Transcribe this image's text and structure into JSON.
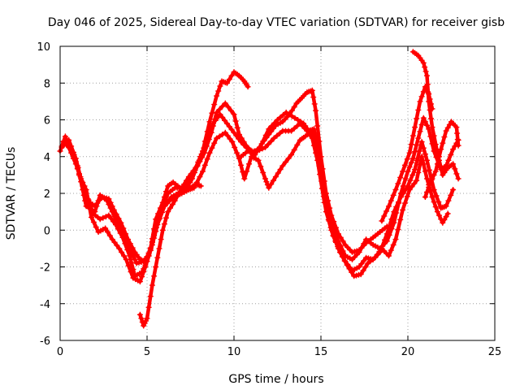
{
  "chart_data": {
    "type": "scatter",
    "title": "Day 046 of 2025, Sidereal Day-to-day VTEC variation (SDTVAR) for receiver gisb",
    "xlabel": "GPS time / hours",
    "ylabel": "SDTVAR / TECUs",
    "xlim": [
      0,
      25
    ],
    "ylim": [
      -6,
      10
    ],
    "xticks": [
      0,
      5,
      10,
      15,
      20,
      25
    ],
    "yticks": [
      -6,
      -4,
      -2,
      0,
      2,
      4,
      6,
      8,
      10
    ],
    "grid": true,
    "marker": "+",
    "color": "#ff0000",
    "series": [
      {
        "name": "satellite track 1",
        "points": [
          [
            0.0,
            4.3
          ],
          [
            0.3,
            5.1
          ],
          [
            0.6,
            4.4
          ],
          [
            1.0,
            3.5
          ],
          [
            1.3,
            2.2
          ],
          [
            1.5,
            1.3
          ],
          [
            2.0,
            1.0
          ],
          [
            2.3,
            1.9
          ],
          [
            2.7,
            1.6
          ],
          [
            3.0,
            1.0
          ],
          [
            3.4,
            0.2
          ],
          [
            3.8,
            -0.6
          ],
          [
            4.1,
            -1.2
          ],
          [
            4.4,
            -1.8
          ],
          [
            4.8,
            -1.7
          ],
          [
            5.1,
            -1.3
          ],
          [
            5.4,
            -0.3
          ],
          [
            5.8,
            1.0
          ],
          [
            6.2,
            2.0
          ],
          [
            6.6,
            2.3
          ],
          [
            7.0,
            2.3
          ],
          [
            7.5,
            2.8
          ],
          [
            7.9,
            3.5
          ],
          [
            8.3,
            4.2
          ],
          [
            8.7,
            5.3
          ],
          [
            9.0,
            6.4
          ],
          [
            9.5,
            6.9
          ],
          [
            10.0,
            6.3
          ],
          [
            10.3,
            5.2
          ],
          [
            10.7,
            4.6
          ],
          [
            11.1,
            4.2
          ],
          [
            11.5,
            4.5
          ],
          [
            12.0,
            5.5
          ],
          [
            12.5,
            6.0
          ],
          [
            13.0,
            6.4
          ],
          [
            13.5,
            6.1
          ],
          [
            14.0,
            5.8
          ],
          [
            14.3,
            5.4
          ],
          [
            14.6,
            5.5
          ],
          [
            14.9,
            4.0
          ],
          [
            15.3,
            1.8
          ],
          [
            15.6,
            0.3
          ],
          [
            16.0,
            -0.6
          ],
          [
            16.4,
            -1.4
          ],
          [
            16.8,
            -1.6
          ],
          [
            17.2,
            -1.2
          ],
          [
            17.6,
            -0.5
          ],
          [
            18.0,
            -0.8
          ],
          [
            18.4,
            -1.0
          ],
          [
            18.8,
            -0.6
          ],
          [
            19.2,
            0.4
          ],
          [
            19.6,
            2.0
          ],
          [
            20.0,
            3.2
          ],
          [
            20.3,
            3.9
          ],
          [
            20.6,
            5.0
          ],
          [
            20.9,
            6.1
          ],
          [
            21.2,
            5.5
          ],
          [
            21.5,
            4.3
          ],
          [
            21.9,
            3.3
          ],
          [
            22.2,
            3.5
          ],
          [
            22.6,
            4.4
          ],
          [
            22.9,
            4.9
          ]
        ]
      },
      {
        "name": "satellite track 2",
        "points": [
          [
            0.1,
            4.5
          ],
          [
            0.4,
            4.8
          ],
          [
            0.8,
            4.1
          ],
          [
            1.1,
            3.0
          ],
          [
            1.5,
            2.0
          ],
          [
            1.9,
            0.9
          ],
          [
            2.3,
            0.6
          ],
          [
            2.8,
            0.8
          ],
          [
            3.2,
            0.3
          ],
          [
            3.6,
            -0.4
          ],
          [
            4.0,
            -1.4
          ],
          [
            4.3,
            -2.5
          ],
          [
            4.7,
            -2.3
          ],
          [
            5.0,
            -1.7
          ],
          [
            5.3,
            -0.8
          ],
          [
            5.6,
            0.3
          ],
          [
            6.0,
            1.3
          ],
          [
            6.4,
            1.8
          ],
          [
            6.8,
            2.0
          ],
          [
            7.2,
            2.2
          ],
          [
            7.6,
            2.8
          ],
          [
            8.0,
            3.8
          ],
          [
            8.4,
            4.8
          ],
          [
            8.8,
            5.8
          ],
          [
            9.2,
            6.3
          ],
          [
            9.6,
            5.8
          ],
          [
            10.0,
            5.3
          ],
          [
            10.4,
            4.8
          ],
          [
            10.9,
            4.3
          ],
          [
            11.3,
            4.3
          ],
          [
            11.8,
            4.5
          ],
          [
            12.3,
            5.0
          ],
          [
            12.8,
            5.4
          ],
          [
            13.3,
            5.4
          ],
          [
            13.8,
            5.8
          ],
          [
            14.2,
            5.4
          ],
          [
            14.5,
            5.0
          ],
          [
            14.8,
            3.8
          ],
          [
            15.2,
            1.5
          ],
          [
            15.6,
            0.0
          ],
          [
            16.0,
            -1.0
          ],
          [
            16.4,
            -1.7
          ],
          [
            16.8,
            -2.2
          ],
          [
            17.2,
            -2.0
          ],
          [
            17.6,
            -1.5
          ],
          [
            18.0,
            -1.6
          ],
          [
            18.4,
            -1.2
          ],
          [
            18.8,
            -0.2
          ],
          [
            19.2,
            1.0
          ],
          [
            19.6,
            1.8
          ],
          [
            20.0,
            2.4
          ],
          [
            20.4,
            3.3
          ],
          [
            20.8,
            4.8
          ],
          [
            21.1,
            3.8
          ],
          [
            21.5,
            2.2
          ],
          [
            21.9,
            1.2
          ],
          [
            22.2,
            1.3
          ],
          [
            22.6,
            2.2
          ]
        ]
      },
      {
        "name": "satellite track 3",
        "points": [
          [
            0.2,
            4.8
          ],
          [
            0.5,
            4.5
          ],
          [
            0.9,
            3.6
          ],
          [
            1.2,
            2.8
          ],
          [
            1.5,
            2.2
          ],
          [
            1.8,
            0.7
          ],
          [
            2.2,
            -0.1
          ],
          [
            2.6,
            0.1
          ],
          [
            3.0,
            -0.5
          ],
          [
            3.4,
            -1.0
          ],
          [
            3.8,
            -1.6
          ],
          [
            4.2,
            -2.6
          ],
          [
            4.6,
            -2.8
          ],
          [
            4.9,
            -2.0
          ],
          [
            5.2,
            -1.1
          ],
          [
            5.5,
            0.2
          ],
          [
            5.9,
            1.2
          ],
          [
            6.3,
            1.6
          ],
          [
            6.7,
            1.9
          ],
          [
            7.0,
            2.0
          ],
          [
            7.4,
            2.2
          ],
          [
            7.7,
            2.3
          ],
          [
            8.2,
            3.2
          ],
          [
            8.6,
            4.2
          ],
          [
            9.0,
            5.0
          ],
          [
            9.5,
            5.3
          ],
          [
            9.9,
            4.8
          ],
          [
            10.3,
            3.9
          ],
          [
            10.6,
            2.8
          ],
          [
            11.0,
            4.0
          ],
          [
            11.4,
            3.8
          ],
          [
            11.8,
            2.8
          ],
          [
            12.0,
            2.3
          ],
          [
            12.4,
            2.9
          ],
          [
            12.8,
            3.5
          ],
          [
            13.3,
            4.1
          ],
          [
            13.8,
            4.9
          ],
          [
            14.1,
            5.1
          ],
          [
            14.5,
            5.4
          ],
          [
            14.9,
            3.5
          ],
          [
            15.3,
            1.0
          ],
          [
            15.7,
            -0.3
          ],
          [
            16.1,
            -1.2
          ],
          [
            16.5,
            -1.9
          ],
          [
            16.9,
            -2.5
          ],
          [
            17.3,
            -2.4
          ],
          [
            17.7,
            -1.8
          ],
          [
            18.1,
            -1.5
          ],
          [
            18.5,
            -1.0
          ],
          [
            18.9,
            -1.4
          ],
          [
            19.3,
            -0.5
          ],
          [
            19.7,
            1.1
          ],
          [
            20.1,
            2.2
          ],
          [
            20.5,
            2.7
          ],
          [
            20.8,
            4.0
          ],
          [
            21.1,
            2.8
          ],
          [
            21.4,
            1.8
          ],
          [
            21.7,
            1.0
          ],
          [
            22.0,
            0.4
          ],
          [
            22.3,
            0.9
          ]
        ]
      },
      {
        "name": "satellite track 4",
        "points": [
          [
            0.5,
            4.9
          ],
          [
            0.9,
            3.9
          ],
          [
            1.3,
            2.4
          ],
          [
            1.6,
            1.6
          ],
          [
            2.0,
            1.3
          ],
          [
            2.4,
            1.8
          ],
          [
            2.8,
            1.7
          ],
          [
            3.1,
            1.1
          ],
          [
            3.5,
            0.4
          ],
          [
            3.9,
            -0.5
          ],
          [
            4.3,
            -1.2
          ],
          [
            4.6,
            -1.6
          ],
          [
            4.9,
            -1.7
          ],
          [
            5.2,
            -1.0
          ],
          [
            5.5,
            0.6
          ],
          [
            5.9,
            1.5
          ],
          [
            6.2,
            2.4
          ],
          [
            6.5,
            2.6
          ],
          [
            6.9,
            2.3
          ],
          [
            7.3,
            2.2
          ],
          [
            7.8,
            2.5
          ],
          [
            8.1,
            2.4
          ]
        ]
      },
      {
        "name": "satellite track 5",
        "points": [
          [
            4.6,
            -4.6
          ],
          [
            4.8,
            -5.2
          ],
          [
            5.0,
            -4.8
          ],
          [
            5.3,
            -3.0
          ],
          [
            5.6,
            -1.5
          ],
          [
            5.9,
            0.0
          ],
          [
            6.2,
            1.0
          ],
          [
            6.6,
            1.6
          ],
          [
            7.0,
            2.3
          ],
          [
            7.4,
            2.9
          ],
          [
            7.8,
            3.4
          ],
          [
            8.2,
            4.3
          ],
          [
            8.6,
            5.9
          ],
          [
            9.0,
            7.3
          ],
          [
            9.3,
            8.1
          ],
          [
            9.6,
            8.0
          ],
          [
            10.0,
            8.6
          ],
          [
            10.3,
            8.4
          ],
          [
            10.6,
            8.1
          ],
          [
            10.8,
            7.8
          ]
        ]
      },
      {
        "name": "satellite track 6",
        "points": [
          [
            10.4,
            4.0
          ],
          [
            10.8,
            4.3
          ],
          [
            11.2,
            4.1
          ],
          [
            11.6,
            4.7
          ],
          [
            12.0,
            5.2
          ],
          [
            12.4,
            5.7
          ],
          [
            12.8,
            5.9
          ],
          [
            13.2,
            6.3
          ],
          [
            13.6,
            6.9
          ],
          [
            13.9,
            7.2
          ],
          [
            14.2,
            7.5
          ],
          [
            14.5,
            7.6
          ],
          [
            14.7,
            6.5
          ],
          [
            15.0,
            4.0
          ],
          [
            15.3,
            2.0
          ],
          [
            15.6,
            0.8
          ],
          [
            16.0,
            -0.2
          ],
          [
            16.4,
            -0.8
          ],
          [
            16.8,
            -1.2
          ],
          [
            17.2,
            -1.1
          ],
          [
            17.6,
            -0.7
          ],
          [
            18.0,
            -0.4
          ],
          [
            18.4,
            -0.1
          ],
          [
            18.8,
            0.2
          ]
        ]
      },
      {
        "name": "satellite track 7",
        "points": [
          [
            18.5,
            0.5
          ],
          [
            18.9,
            1.3
          ],
          [
            19.3,
            2.2
          ],
          [
            19.7,
            3.2
          ],
          [
            20.1,
            4.2
          ],
          [
            20.4,
            5.6
          ],
          [
            20.7,
            7.0
          ],
          [
            21.0,
            7.8
          ],
          [
            21.2,
            7.4
          ],
          [
            21.4,
            6.6
          ]
        ]
      },
      {
        "name": "satellite track 8",
        "points": [
          [
            20.3,
            9.7
          ],
          [
            20.6,
            9.5
          ],
          [
            20.9,
            9.1
          ],
          [
            21.1,
            8.4
          ],
          [
            21.2,
            7.0
          ],
          [
            21.4,
            5.6
          ],
          [
            21.7,
            4.2
          ],
          [
            22.0,
            3.0
          ],
          [
            22.3,
            3.4
          ],
          [
            22.6,
            3.6
          ],
          [
            22.9,
            2.8
          ]
        ]
      },
      {
        "name": "satellite track 9",
        "points": [
          [
            21.0,
            1.8
          ],
          [
            21.3,
            2.6
          ],
          [
            21.6,
            3.2
          ],
          [
            21.9,
            4.4
          ],
          [
            22.2,
            5.4
          ],
          [
            22.5,
            5.9
          ],
          [
            22.8,
            5.6
          ],
          [
            22.9,
            4.6
          ]
        ]
      }
    ]
  }
}
